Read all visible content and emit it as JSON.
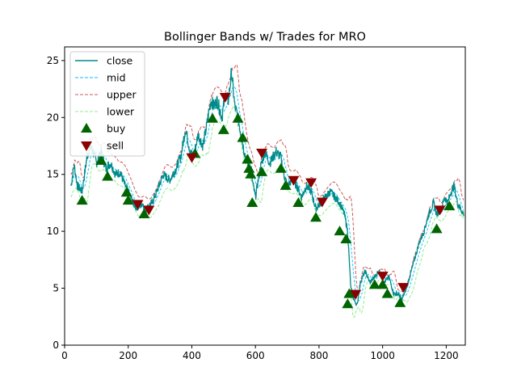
{
  "chart_data": {
    "type": "line",
    "title": "Bollinger Bands w/ Trades for MRO",
    "xlabel": "",
    "ylabel": "",
    "xlim": [
      0,
      1260
    ],
    "ylim": [
      0,
      26.2
    ],
    "xticks": [
      0,
      200,
      400,
      600,
      800,
      1000,
      1200
    ],
    "yticks": [
      0,
      5,
      10,
      15,
      20,
      25
    ],
    "grid": false,
    "legend_position": "top-left",
    "colors": {
      "close": "#008b8b",
      "mid": "#00bfff",
      "upper": "#cd5c5c",
      "lower": "#90ee90",
      "buy": "#006400",
      "sell": "#8b0000"
    },
    "close_anchors": {
      "x": [
        20,
        30,
        40,
        55,
        70,
        80,
        90,
        100,
        115,
        130,
        145,
        160,
        175,
        190,
        200,
        215,
        230,
        245,
        255,
        265,
        275,
        290,
        310,
        330,
        350,
        365,
        380,
        395,
        405,
        420,
        435,
        445,
        460,
        470,
        480,
        495,
        505,
        515,
        525,
        535,
        545,
        555,
        565,
        580,
        590,
        600,
        615,
        630,
        645,
        665,
        680,
        690,
        700,
        715,
        730,
        745,
        760,
        775,
        790,
        805,
        820,
        835,
        850,
        865,
        880,
        890,
        900,
        910,
        920,
        930,
        945,
        960,
        975,
        990,
        1005,
        1020,
        1035,
        1050,
        1060,
        1075,
        1085,
        1100,
        1115,
        1130,
        1145,
        1160,
        1170,
        1185,
        1195,
        1205,
        1215,
        1225,
        1235,
        1245,
        1255
      ],
      "y": [
        14.0,
        15.8,
        14.0,
        13.5,
        16.5,
        17.5,
        17.0,
        16.0,
        17.0,
        15.5,
        16.0,
        15.0,
        15.2,
        14.0,
        13.5,
        12.5,
        12.0,
        12.5,
        11.8,
        12.3,
        12.5,
        13.5,
        15.0,
        14.5,
        15.5,
        16.5,
        19.0,
        17.0,
        16.5,
        18.5,
        17.5,
        19.0,
        21.5,
        21.0,
        21.5,
        20.0,
        22.0,
        21.5,
        24.0,
        21.0,
        20.0,
        18.5,
        17.0,
        15.5,
        14.5,
        13.0,
        15.5,
        17.0,
        16.0,
        17.0,
        16.5,
        15.0,
        14.0,
        14.5,
        14.0,
        13.0,
        14.0,
        13.5,
        12.0,
        12.5,
        13.0,
        13.5,
        13.0,
        12.5,
        11.5,
        10.0,
        5.0,
        4.0,
        3.5,
        5.5,
        6.5,
        5.5,
        6.0,
        6.5,
        5.5,
        6.0,
        4.5,
        4.5,
        4.0,
        5.0,
        6.0,
        7.5,
        9.0,
        10.0,
        11.5,
        12.5,
        11.5,
        12.0,
        13.0,
        12.5,
        13.5,
        14.0,
        12.5,
        12.0,
        11.5
      ]
    },
    "series": [
      {
        "name": "close"
      },
      {
        "name": "mid"
      },
      {
        "name": "upper"
      },
      {
        "name": "lower"
      }
    ],
    "buy": {
      "name": "buy",
      "x": [
        55,
        115,
        135,
        195,
        200,
        250,
        410,
        465,
        500,
        545,
        560,
        575,
        580,
        585,
        590,
        620,
        680,
        695,
        735,
        790,
        865,
        885,
        890,
        895,
        975,
        1000,
        1015,
        1055,
        1170,
        1210
      ],
      "y": [
        12.7,
        16.2,
        14.8,
        13.4,
        12.7,
        11.5,
        16.8,
        19.9,
        18.9,
        19.9,
        18.2,
        16.3,
        15.5,
        15.0,
        12.5,
        15.2,
        15.5,
        14.0,
        12.5,
        11.2,
        10.0,
        9.3,
        3.6,
        4.5,
        5.3,
        5.3,
        4.5,
        3.7,
        10.2,
        12.2
      ]
    },
    "sell": {
      "name": "sell",
      "x": [
        230,
        265,
        400,
        505,
        620,
        720,
        775,
        810,
        915,
        1000,
        1065,
        1180
      ],
      "y": [
        12.4,
        11.9,
        16.5,
        21.8,
        16.9,
        14.5,
        14.3,
        12.6,
        4.5,
        6.1,
        5.1,
        11.9
      ]
    },
    "legend": [
      {
        "label": "close",
        "kind": "line",
        "series": "close"
      },
      {
        "label": "mid",
        "kind": "dash",
        "series": "mid"
      },
      {
        "label": "upper",
        "kind": "dash",
        "series": "upper"
      },
      {
        "label": "lower",
        "kind": "dash",
        "series": "lower"
      },
      {
        "label": "buy",
        "kind": "marker-up",
        "series": "buy"
      },
      {
        "label": "sell",
        "kind": "marker-down",
        "series": "sell"
      }
    ]
  }
}
